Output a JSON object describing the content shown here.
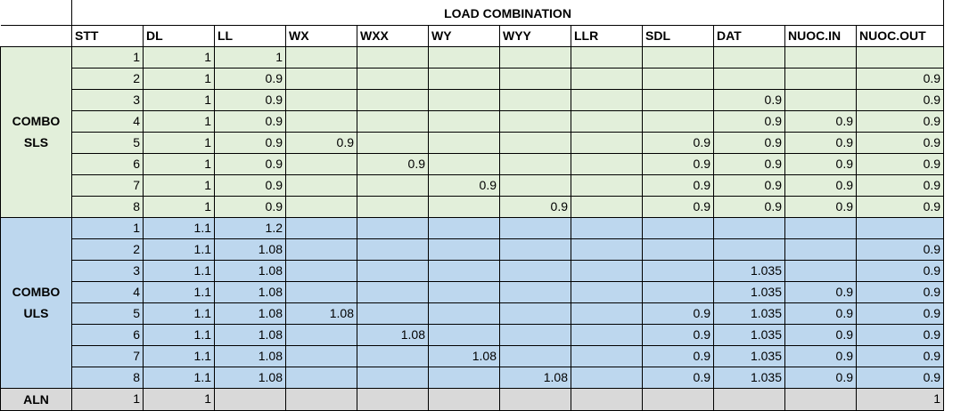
{
  "title": "LOAD COMBINATION",
  "columns": [
    "STT",
    "DL",
    "LL",
    "WX",
    "WXX",
    "WY",
    "WYY",
    "LLR",
    "SDL",
    "DAT",
    "NUOC.IN",
    "NUOC.OUT"
  ],
  "groups": [
    {
      "label": [
        "COMBO",
        "SLS"
      ],
      "rows": [
        [
          1,
          1,
          1,
          null,
          null,
          null,
          null,
          null,
          null,
          null,
          null,
          null
        ],
        [
          2,
          1,
          0.9,
          null,
          null,
          null,
          null,
          null,
          null,
          null,
          null,
          0.9
        ],
        [
          3,
          1,
          0.9,
          null,
          null,
          null,
          null,
          null,
          null,
          0.9,
          null,
          0.9
        ],
        [
          4,
          1,
          0.9,
          null,
          null,
          null,
          null,
          null,
          null,
          0.9,
          0.9,
          0.9
        ],
        [
          5,
          1,
          0.9,
          0.9,
          null,
          null,
          null,
          null,
          0.9,
          0.9,
          0.9,
          0.9
        ],
        [
          6,
          1,
          0.9,
          null,
          0.9,
          null,
          null,
          null,
          0.9,
          0.9,
          0.9,
          0.9
        ],
        [
          7,
          1,
          0.9,
          null,
          null,
          0.9,
          null,
          null,
          0.9,
          0.9,
          0.9,
          0.9
        ],
        [
          8,
          1,
          0.9,
          null,
          null,
          null,
          0.9,
          null,
          0.9,
          0.9,
          0.9,
          0.9
        ]
      ]
    },
    {
      "label": [
        "COMBO",
        "ULS"
      ],
      "rows": [
        [
          1,
          1.1,
          1.2,
          null,
          null,
          null,
          null,
          null,
          null,
          null,
          null,
          null
        ],
        [
          2,
          1.1,
          1.08,
          null,
          null,
          null,
          null,
          null,
          null,
          null,
          null,
          0.9
        ],
        [
          3,
          1.1,
          1.08,
          null,
          null,
          null,
          null,
          null,
          null,
          1.035,
          null,
          0.9
        ],
        [
          4,
          1.1,
          1.08,
          null,
          null,
          null,
          null,
          null,
          null,
          1.035,
          0.9,
          0.9
        ],
        [
          5,
          1.1,
          1.08,
          1.08,
          null,
          null,
          null,
          null,
          0.9,
          1.035,
          0.9,
          0.9
        ],
        [
          6,
          1.1,
          1.08,
          null,
          1.08,
          null,
          null,
          null,
          0.9,
          1.035,
          0.9,
          0.9
        ],
        [
          7,
          1.1,
          1.08,
          null,
          null,
          1.08,
          null,
          null,
          0.9,
          1.035,
          0.9,
          0.9
        ],
        [
          8,
          1.1,
          1.08,
          null,
          null,
          null,
          1.08,
          null,
          0.9,
          1.035,
          0.9,
          0.9
        ]
      ]
    },
    {
      "label": [
        "ALN"
      ],
      "rows": [
        [
          1,
          1,
          null,
          null,
          null,
          null,
          null,
          null,
          null,
          null,
          null,
          1
        ]
      ]
    }
  ]
}
